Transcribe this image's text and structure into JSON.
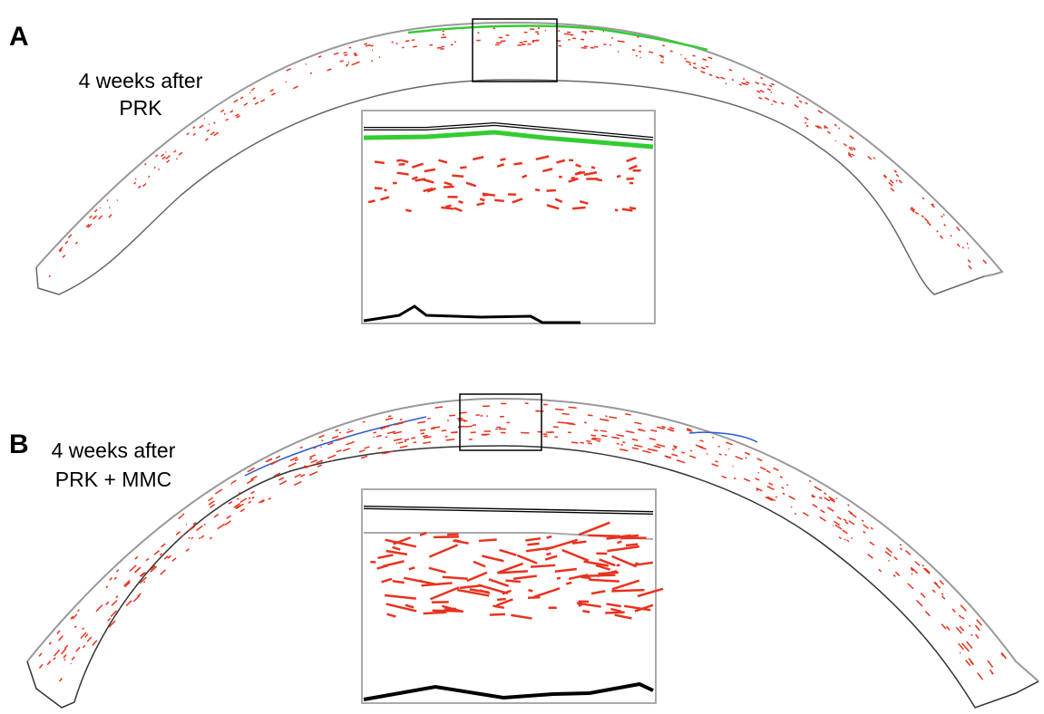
{
  "panels": [
    {
      "label": "A",
      "caption": [
        "4 weeks after",
        "PRK"
      ]
    },
    {
      "label": "B",
      "caption": [
        "4 weeks after",
        "PRK + MMC"
      ]
    }
  ]
}
